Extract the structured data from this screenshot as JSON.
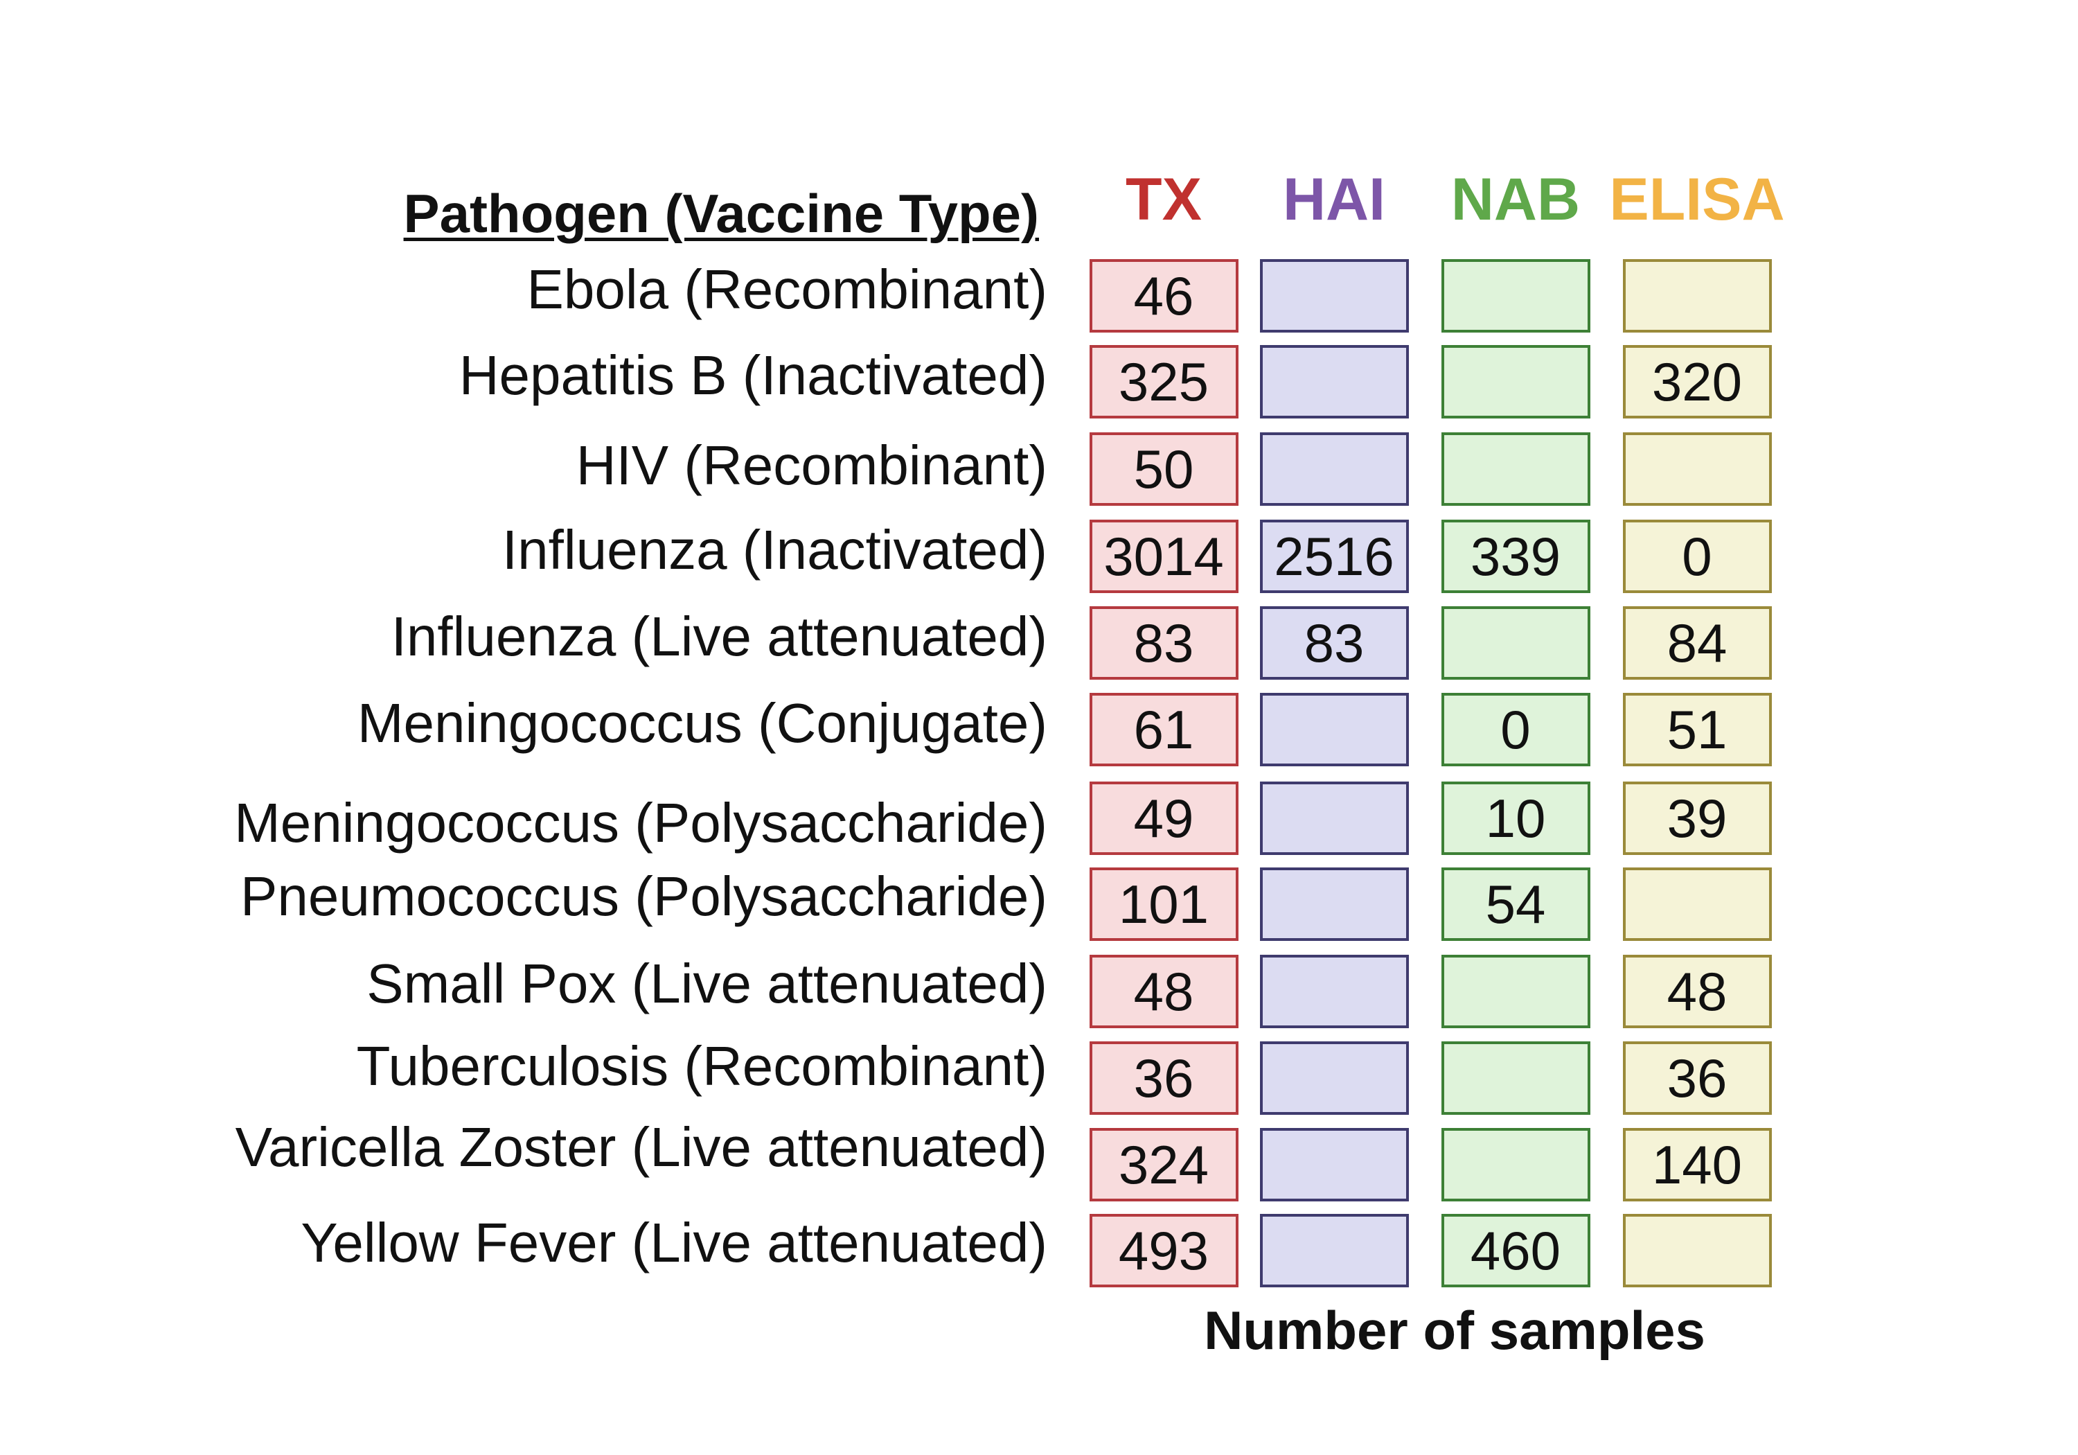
{
  "header": {
    "title": "Pathogen (Vaccine Type)"
  },
  "columns": [
    {
      "key": "tx",
      "label": "TX",
      "text_color": "#C0312F",
      "fill": "#F8DCDD",
      "border": "#B53A3F"
    },
    {
      "key": "hai",
      "label": "HAI",
      "text_color": "#7D56A8",
      "fill": "#DCDCF2",
      "border": "#3F3B6E"
    },
    {
      "key": "nab",
      "label": "NAB",
      "text_color": "#5FA84A",
      "fill": "#DFF3DA",
      "border": "#3D8036"
    },
    {
      "key": "elisa",
      "label": "ELISA",
      "text_color": "#F2B345",
      "fill": "#F5F3D7",
      "border": "#9A8A3A"
    }
  ],
  "rows": [
    {
      "label": "Ebola (Recombinant)",
      "values": [
        "46",
        "",
        "",
        ""
      ]
    },
    {
      "label": "Hepatitis B (Inactivated)",
      "values": [
        "325",
        "",
        "",
        "320"
      ]
    },
    {
      "label": "HIV (Recombinant)",
      "values": [
        "50",
        "",
        "",
        ""
      ]
    },
    {
      "label": "Influenza (Inactivated)",
      "values": [
        "3014",
        "2516",
        "339",
        "0"
      ]
    },
    {
      "label": "Influenza (Live attenuated)",
      "values": [
        "83",
        "83",
        "",
        "84"
      ]
    },
    {
      "label": "Meningococcus (Conjugate)",
      "values": [
        "61",
        "",
        "0",
        "51"
      ]
    },
    {
      "label": "Meningococcus (Polysaccharide)",
      "values": [
        "49",
        "",
        "10",
        "39"
      ]
    },
    {
      "label": "Pneumococcus (Polysaccharide)",
      "values": [
        "101",
        "",
        "54",
        ""
      ]
    },
    {
      "label": "Small Pox (Live attenuated)",
      "values": [
        "48",
        "",
        "",
        "48"
      ]
    },
    {
      "label": "Tuberculosis (Recombinant)",
      "values": [
        "36",
        "",
        "",
        "36"
      ]
    },
    {
      "label": "Varicella Zoster (Live attenuated)",
      "values": [
        "324",
        "",
        "",
        "140"
      ]
    },
    {
      "label": "Yellow Fever (Live attenuated)",
      "values": [
        "493",
        "",
        "460",
        ""
      ]
    }
  ],
  "footer": {
    "label": "Number of samples"
  }
}
